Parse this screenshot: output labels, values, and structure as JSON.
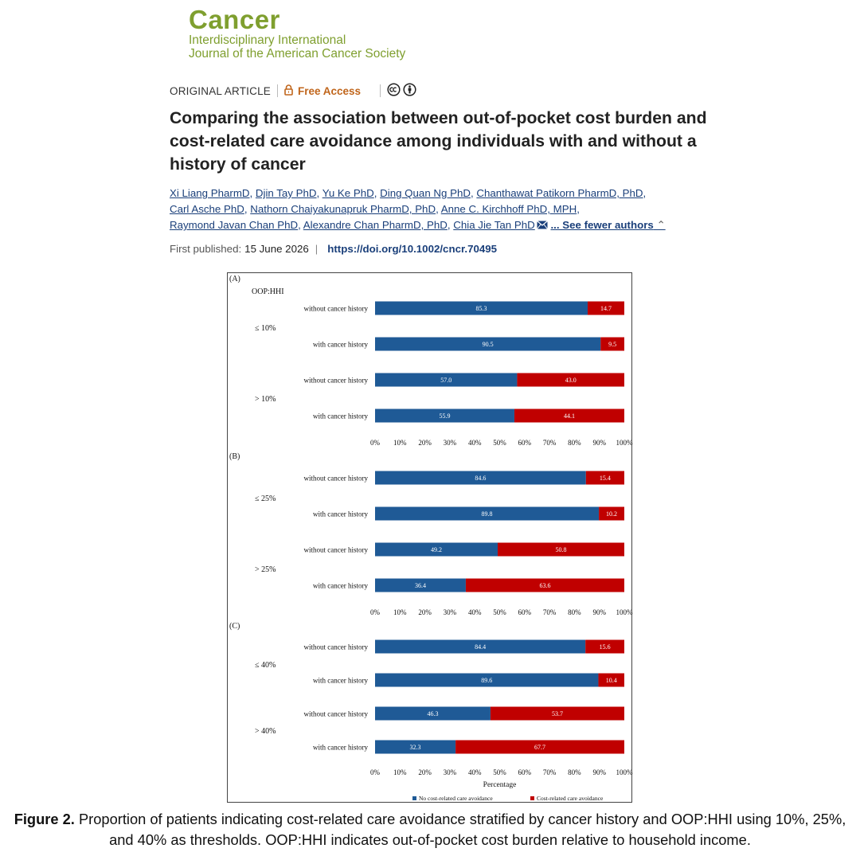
{
  "journal": {
    "name": "Cancer",
    "subtitle_line1": "Interdisciplinary International",
    "subtitle_line2": "Journal of the American Cancer Society"
  },
  "article": {
    "type": "ORIGINAL ARTICLE",
    "access": "Free Access",
    "icons": [
      "lock-icon",
      "creative-commons-icon",
      "attribution-icon"
    ],
    "title": "Comparing the association between out-of-pocket cost burden and cost-related care avoidance among individuals with and without a history of cancer",
    "authors": [
      "Xi Liang PharmD",
      "Djin Tay PhD",
      "Yu Ke PhD",
      "Ding Quan Ng PhD",
      "Chanthawat Patikorn PharmD, PhD",
      "Carl Asche PhD",
      "Nathorn Chaiyakunapruk PharmD, PhD",
      "Anne C. Kirchhoff PhD, MPH",
      "Raymond Javan Chan PhD",
      "Alexandre Chan PharmD, PhD",
      "Chia Jie Tan PhD"
    ],
    "see_fewer": "... See fewer authors",
    "first_published_label": "First published:",
    "first_published_date": "15 June 2026",
    "doi": "https://doi.org/10.1002/cncr.70495"
  },
  "figure": {
    "caption_label": "Figure 2.",
    "caption_text": "Proportion of patients indicating cost-related care avoidance stratified by cancer history and OOP:HHI using 10%, 25%, and 40% as thresholds. OOP:HHI indicates out-of-pocket cost burden relative to household income."
  },
  "chart_data": [
    {
      "type": "bar",
      "stacked": true,
      "orientation": "horizontal",
      "panel": "(A)",
      "header": "OOP:HHI",
      "groups": [
        "≤ 10%",
        "> 10%"
      ],
      "categories": [
        "without cancer history",
        "with cancer history",
        "without cancer history",
        "with cancer history"
      ],
      "series": [
        {
          "name": "No cost-related care avoidance",
          "color": "#1f5a96",
          "values": [
            85.3,
            90.5,
            57.0,
            55.9
          ]
        },
        {
          "name": "Cost-related care avoidance",
          "color": "#c00000",
          "values": [
            14.7,
            9.5,
            43.0,
            44.1
          ]
        }
      ],
      "xticks": [
        "0%",
        "10%",
        "20%",
        "30%",
        "40%",
        "50%",
        "60%",
        "70%",
        "80%",
        "90%",
        "100%"
      ],
      "xlim": [
        0,
        100
      ]
    },
    {
      "type": "bar",
      "stacked": true,
      "orientation": "horizontal",
      "panel": "(B)",
      "groups": [
        "≤ 25%",
        "> 25%"
      ],
      "categories": [
        "without cancer history",
        "with cancer history",
        "without cancer history",
        "with cancer history"
      ],
      "series": [
        {
          "name": "No cost-related care avoidance",
          "color": "#1f5a96",
          "values": [
            84.6,
            89.8,
            49.2,
            36.4
          ]
        },
        {
          "name": "Cost-related care avoidance",
          "color": "#c00000",
          "values": [
            15.4,
            10.2,
            50.8,
            63.6
          ]
        }
      ],
      "xticks": [
        "0%",
        "10%",
        "20%",
        "30%",
        "40%",
        "50%",
        "60%",
        "70%",
        "80%",
        "90%",
        "100%"
      ],
      "xlim": [
        0,
        100
      ]
    },
    {
      "type": "bar",
      "stacked": true,
      "orientation": "horizontal",
      "panel": "(C)",
      "groups": [
        "≤ 40%",
        "> 40%"
      ],
      "categories": [
        "without cancer history",
        "with cancer history",
        "without cancer history",
        "with cancer history"
      ],
      "series": [
        {
          "name": "No cost-related care avoidance",
          "color": "#1f5a96",
          "values": [
            84.4,
            89.6,
            46.3,
            32.3
          ]
        },
        {
          "name": "Cost-related care avoidance",
          "color": "#c00000",
          "values": [
            15.6,
            10.4,
            53.7,
            67.7
          ]
        }
      ],
      "xticks": [
        "0%",
        "10%",
        "20%",
        "30%",
        "40%",
        "50%",
        "60%",
        "70%",
        "80%",
        "90%",
        "100%"
      ],
      "xlim": [
        0,
        100
      ],
      "xlabel": "Percentage",
      "legend": [
        "No cost-related care avoidance",
        "Cost-related care avoidance"
      ],
      "legend_position": "bottom"
    }
  ]
}
